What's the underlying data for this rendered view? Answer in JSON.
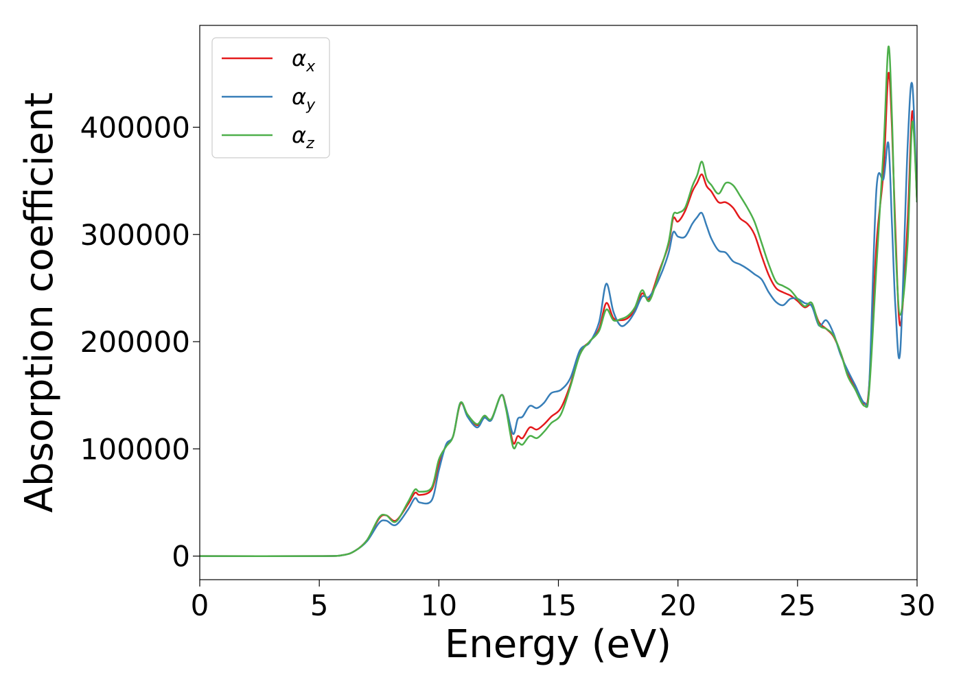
{
  "chart_data": {
    "type": "line",
    "title": "",
    "xlabel": "Energy (eV)",
    "ylabel": "Absorption coefficient",
    "xlim": [
      0,
      30
    ],
    "ylim": [
      -22000,
      495000
    ],
    "xticks": [
      0,
      5,
      10,
      15,
      20,
      25,
      30
    ],
    "xtick_labels": [
      "0",
      "5",
      "10",
      "15",
      "20",
      "25",
      "30"
    ],
    "yticks": [
      0,
      100000,
      200000,
      300000,
      400000
    ],
    "ytick_labels": [
      "0",
      "100000",
      "200000",
      "300000",
      "400000"
    ],
    "legend_position": "top-left",
    "series": [
      {
        "name": "α_x",
        "legend_symbol": "α",
        "legend_sub": "x",
        "color": "#e41a1c",
        "x": [
          0,
          5,
          6,
          6.5,
          7,
          7.5,
          7.8,
          8.2,
          8.7,
          9.0,
          9.2,
          9.7,
          10.0,
          10.3,
          10.6,
          10.9,
          11.2,
          11.6,
          11.9,
          12.2,
          12.6,
          12.8,
          13.1,
          13.3,
          13.5,
          13.8,
          14.1,
          14.4,
          14.7,
          15.1,
          15.5,
          15.9,
          16.3,
          16.7,
          17.0,
          17.3,
          17.6,
          17.9,
          18.2,
          18.5,
          18.8,
          19.2,
          19.6,
          19.8,
          20.0,
          20.3,
          20.6,
          20.8,
          21.0,
          21.2,
          21.4,
          21.7,
          22.0,
          22.3,
          22.6,
          22.9,
          23.2,
          23.5,
          23.8,
          24.1,
          24.4,
          24.7,
          25.0,
          25.3,
          25.6,
          25.9,
          26.2,
          26.5,
          26.8,
          27.1,
          27.4,
          27.8,
          28.0,
          28.3,
          28.6,
          28.8,
          28.95,
          29.1,
          29.3,
          29.6,
          29.8,
          30.0
        ],
        "y": [
          0,
          0,
          1000,
          5000,
          15000,
          35000,
          38000,
          33000,
          48000,
          59000,
          57000,
          62000,
          86000,
          103000,
          112000,
          142000,
          132000,
          122000,
          130000,
          128000,
          150000,
          140000,
          106000,
          112000,
          110000,
          120000,
          118000,
          123000,
          130000,
          138000,
          160000,
          190000,
          200000,
          212000,
          236000,
          222000,
          220000,
          222000,
          230000,
          245000,
          240000,
          265000,
          290000,
          315000,
          312000,
          322000,
          340000,
          348000,
          356000,
          345000,
          340000,
          330000,
          330000,
          325000,
          315000,
          310000,
          300000,
          280000,
          262000,
          250000,
          246000,
          243000,
          238000,
          232000,
          234000,
          218000,
          212000,
          205000,
          190000,
          170000,
          158000,
          142000,
          160000,
          290000,
          360000,
          450000,
          400000,
          300000,
          215000,
          310000,
          415000,
          330000
        ]
      },
      {
        "name": "α_y",
        "legend_symbol": "α",
        "legend_sub": "y",
        "color": "#377eb8",
        "x": [
          0,
          5,
          6,
          6.5,
          7,
          7.5,
          7.8,
          8.2,
          8.7,
          9.0,
          9.2,
          9.7,
          10.0,
          10.3,
          10.6,
          10.9,
          11.2,
          11.6,
          11.9,
          12.2,
          12.6,
          12.8,
          13.1,
          13.3,
          13.5,
          13.8,
          14.1,
          14.4,
          14.7,
          15.1,
          15.5,
          15.9,
          16.3,
          16.7,
          17.0,
          17.3,
          17.6,
          17.9,
          18.2,
          18.5,
          18.8,
          19.2,
          19.6,
          19.8,
          20.0,
          20.3,
          20.6,
          20.8,
          21.0,
          21.2,
          21.4,
          21.7,
          22.0,
          22.3,
          22.6,
          22.9,
          23.2,
          23.5,
          23.8,
          24.1,
          24.4,
          24.7,
          25.0,
          25.3,
          25.6,
          25.9,
          26.2,
          26.5,
          26.8,
          27.1,
          27.4,
          27.8,
          28.0,
          28.3,
          28.6,
          28.8,
          28.95,
          29.1,
          29.3,
          29.6,
          29.8,
          30.0
        ],
        "y": [
          0,
          0,
          1000,
          5000,
          14000,
          31000,
          33000,
          29000,
          43000,
          54000,
          50000,
          52000,
          80000,
          104000,
          112000,
          143000,
          130000,
          120000,
          129000,
          127000,
          150000,
          140000,
          114000,
          128000,
          130000,
          140000,
          138000,
          143000,
          152000,
          155000,
          166000,
          192000,
          199000,
          218000,
          254000,
          228000,
          215000,
          218000,
          228000,
          242000,
          242000,
          258000,
          282000,
          302000,
          298000,
          298000,
          310000,
          316000,
          320000,
          308000,
          296000,
          285000,
          283000,
          275000,
          272000,
          268000,
          263000,
          258000,
          246000,
          237000,
          234000,
          240000,
          240000,
          236000,
          233000,
          215000,
          220000,
          208000,
          188000,
          173000,
          160000,
          143000,
          160000,
          342000,
          352000,
          385000,
          310000,
          230000,
          192000,
          380000,
          440000,
          330000
        ]
      },
      {
        "name": "α_z",
        "legend_symbol": "α",
        "legend_sub": "z",
        "color": "#4daf4a",
        "x": [
          0,
          5,
          6,
          6.5,
          7,
          7.5,
          7.8,
          8.2,
          8.7,
          9.0,
          9.2,
          9.7,
          10.0,
          10.3,
          10.6,
          10.9,
          11.2,
          11.6,
          11.9,
          12.2,
          12.6,
          12.8,
          13.1,
          13.3,
          13.5,
          13.8,
          14.1,
          14.4,
          14.7,
          15.1,
          15.5,
          15.9,
          16.3,
          16.7,
          17.0,
          17.3,
          17.6,
          17.9,
          18.2,
          18.5,
          18.8,
          19.2,
          19.6,
          19.8,
          20.0,
          20.3,
          20.6,
          20.8,
          21.0,
          21.2,
          21.4,
          21.7,
          22.0,
          22.3,
          22.6,
          22.9,
          23.2,
          23.5,
          23.8,
          24.1,
          24.4,
          24.7,
          25.0,
          25.3,
          25.6,
          25.9,
          26.2,
          26.5,
          26.8,
          27.1,
          27.4,
          27.8,
          28.0,
          28.3,
          28.6,
          28.8,
          28.95,
          29.1,
          29.3,
          29.6,
          29.8,
          30.0
        ],
        "y": [
          0,
          0,
          1000,
          5000,
          15000,
          36000,
          38000,
          32000,
          50000,
          62000,
          60000,
          64000,
          90000,
          102000,
          112000,
          143000,
          132000,
          123000,
          131000,
          128000,
          150000,
          138000,
          102000,
          106000,
          104000,
          112000,
          110000,
          116000,
          124000,
          132000,
          158000,
          188000,
          200000,
          210000,
          230000,
          220000,
          221000,
          224000,
          232000,
          248000,
          238000,
          263000,
          292000,
          318000,
          320000,
          325000,
          345000,
          355000,
          368000,
          352000,
          346000,
          338000,
          348000,
          346000,
          336000,
          325000,
          312000,
          292000,
          272000,
          256000,
          252000,
          248000,
          240000,
          233000,
          236000,
          216000,
          212000,
          206000,
          190000,
          168000,
          156000,
          140000,
          155000,
          270000,
          380000,
          475000,
          410000,
          290000,
          225000,
          290000,
          405000,
          330000
        ]
      }
    ]
  }
}
